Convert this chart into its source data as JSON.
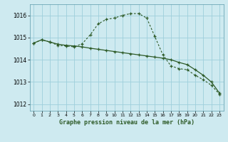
{
  "background_color": "#ceeaf0",
  "grid_color": "#9ecfdb",
  "line_color": "#2d5a27",
  "title": "Graphe pression niveau de la mer (hPa)",
  "xlim": [
    -0.5,
    23.5
  ],
  "ylim": [
    1011.7,
    1016.5
  ],
  "yticks": [
    1012,
    1013,
    1014,
    1015,
    1016
  ],
  "xticks": [
    0,
    1,
    2,
    3,
    4,
    5,
    6,
    7,
    8,
    9,
    10,
    11,
    12,
    13,
    14,
    15,
    16,
    17,
    18,
    19,
    20,
    21,
    22,
    23
  ],
  "line1_x": [
    0,
    1,
    2,
    3,
    4,
    5,
    6,
    7,
    8,
    9,
    10,
    11,
    12,
    13,
    14,
    15,
    16,
    17,
    18,
    19,
    20,
    21,
    22,
    23
  ],
  "line1_y": [
    1014.75,
    1014.9,
    1014.8,
    1014.7,
    1014.65,
    1014.62,
    1014.58,
    1014.52,
    1014.47,
    1014.42,
    1014.37,
    1014.32,
    1014.27,
    1014.22,
    1014.17,
    1014.12,
    1014.07,
    1014.0,
    1013.88,
    1013.78,
    1013.55,
    1013.3,
    1013.0,
    1012.5
  ],
  "line2_x": [
    0,
    1,
    2,
    3,
    4,
    5,
    6,
    7,
    8,
    9,
    10,
    11,
    12,
    13,
    14,
    15,
    16,
    17,
    18,
    19,
    20,
    21,
    22,
    23
  ],
  "line2_y": [
    1014.75,
    1014.9,
    1014.8,
    1014.65,
    1014.62,
    1014.58,
    1014.72,
    1015.12,
    1015.62,
    1015.82,
    1015.88,
    1016.0,
    1016.08,
    1016.08,
    1015.88,
    1015.05,
    1014.22,
    1013.72,
    1013.6,
    1013.55,
    1013.3,
    1013.1,
    1012.85,
    1012.45
  ]
}
